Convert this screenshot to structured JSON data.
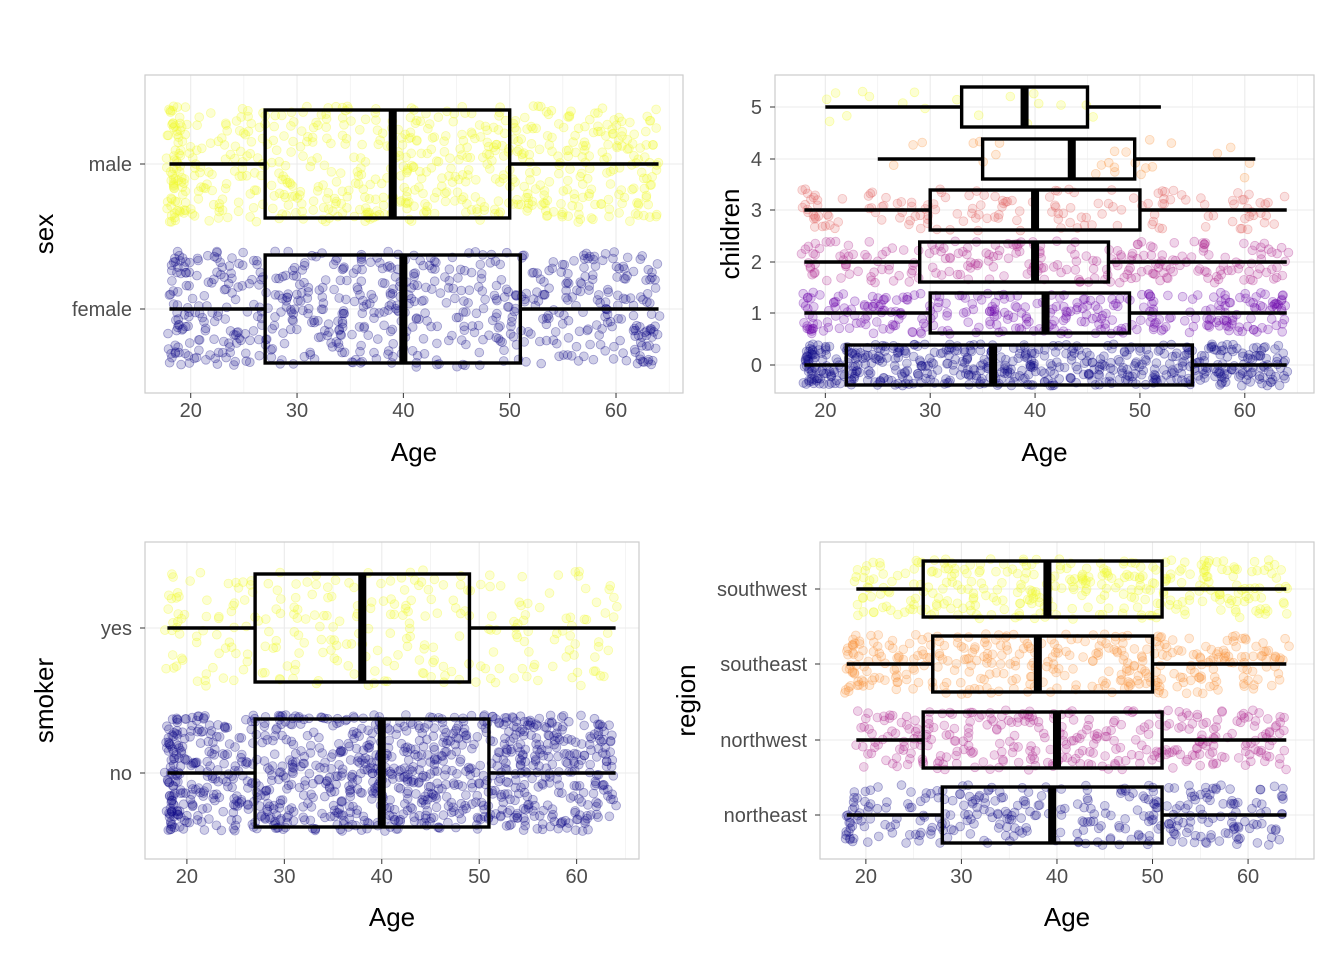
{
  "palette": {
    "yellow": "#f0f921",
    "orange": "#f89540",
    "pink": "#e16462",
    "magenta": "#b12a90",
    "purple": "#6a00a8",
    "blue": "#0d0887",
    "box_stroke": "#000000",
    "grid": "#ebebeb",
    "panel_border": "#cccccc"
  },
  "chart_data": [
    {
      "type": "boxplot",
      "xlabel": "Age",
      "ylabel": "sex",
      "xlim": [
        15.7,
        66.3
      ],
      "xticks": [
        20,
        30,
        40,
        50,
        60
      ],
      "grid": true,
      "points": "jittered, alpha 0.2",
      "categories": [
        "female",
        "male"
      ],
      "boxes": [
        {
          "category": "female",
          "min": 18,
          "q1": 27,
          "median": 40,
          "q3": 51,
          "max": 64,
          "color": "#0d0887"
        },
        {
          "category": "male",
          "min": 18,
          "q1": 27,
          "median": 39,
          "q3": 50,
          "max": 64,
          "color": "#f0f921"
        }
      ]
    },
    {
      "type": "boxplot",
      "xlabel": "Age",
      "ylabel": "children",
      "xlim": [
        15.2,
        66.6
      ],
      "xticks": [
        20,
        30,
        40,
        50,
        60
      ],
      "grid": true,
      "points": "jittered, alpha 0.2",
      "categories": [
        "0",
        "1",
        "2",
        "3",
        "4",
        "5"
      ],
      "boxes": [
        {
          "category": "0",
          "min": 18,
          "q1": 22,
          "median": 36,
          "q3": 55,
          "max": 64,
          "color": "#0d0887"
        },
        {
          "category": "1",
          "min": 18,
          "q1": 30,
          "median": 41,
          "q3": 49,
          "max": 64,
          "color": "#6a00a8"
        },
        {
          "category": "2",
          "min": 18,
          "q1": 29,
          "median": 40,
          "q3": 47,
          "max": 64,
          "color": "#b12a90"
        },
        {
          "category": "3",
          "min": 18,
          "q1": 30,
          "median": 40,
          "q3": 50,
          "max": 64,
          "color": "#e16462"
        },
        {
          "category": "4",
          "min": 25,
          "q1": 35,
          "median": 43.5,
          "q3": 49.5,
          "max": 61,
          "color": "#f89540"
        },
        {
          "category": "5",
          "min": 20,
          "q1": 33,
          "median": 39,
          "q3": 45,
          "max": 52,
          "color": "#f0f921"
        }
      ]
    },
    {
      "type": "boxplot",
      "xlabel": "Age",
      "ylabel": "smoker",
      "xlim": [
        15.7,
        66.4
      ],
      "xticks": [
        20,
        30,
        40,
        50,
        60
      ],
      "grid": true,
      "points": "jittered, alpha 0.2",
      "categories": [
        "no",
        "yes"
      ],
      "boxes": [
        {
          "category": "no",
          "min": 18,
          "q1": 27,
          "median": 40,
          "q3": 51,
          "max": 64,
          "color": "#0d0887"
        },
        {
          "category": "yes",
          "min": 18,
          "q1": 27,
          "median": 38,
          "q3": 49,
          "max": 64,
          "color": "#f0f921"
        }
      ]
    },
    {
      "type": "boxplot",
      "xlabel": "Age",
      "ylabel": "region",
      "xlim": [
        15.2,
        66.9
      ],
      "xticks": [
        20,
        30,
        40,
        50,
        60
      ],
      "grid": true,
      "points": "jittered, alpha 0.2",
      "categories": [
        "northeast",
        "northwest",
        "southeast",
        "southwest"
      ],
      "boxes": [
        {
          "category": "northeast",
          "min": 18,
          "q1": 28,
          "median": 39.5,
          "q3": 51,
          "max": 64,
          "color": "#0d0887"
        },
        {
          "category": "northwest",
          "min": 19,
          "q1": 26,
          "median": 40,
          "q3": 51,
          "max": 64,
          "color": "#b12a90"
        },
        {
          "category": "southeast",
          "min": 18,
          "q1": 27,
          "median": 38,
          "q3": 50,
          "max": 64,
          "color": "#f89540"
        },
        {
          "category": "southwest",
          "min": 19,
          "q1": 26,
          "median": 39,
          "q3": 51,
          "max": 64,
          "color": "#f0f921"
        }
      ]
    }
  ]
}
